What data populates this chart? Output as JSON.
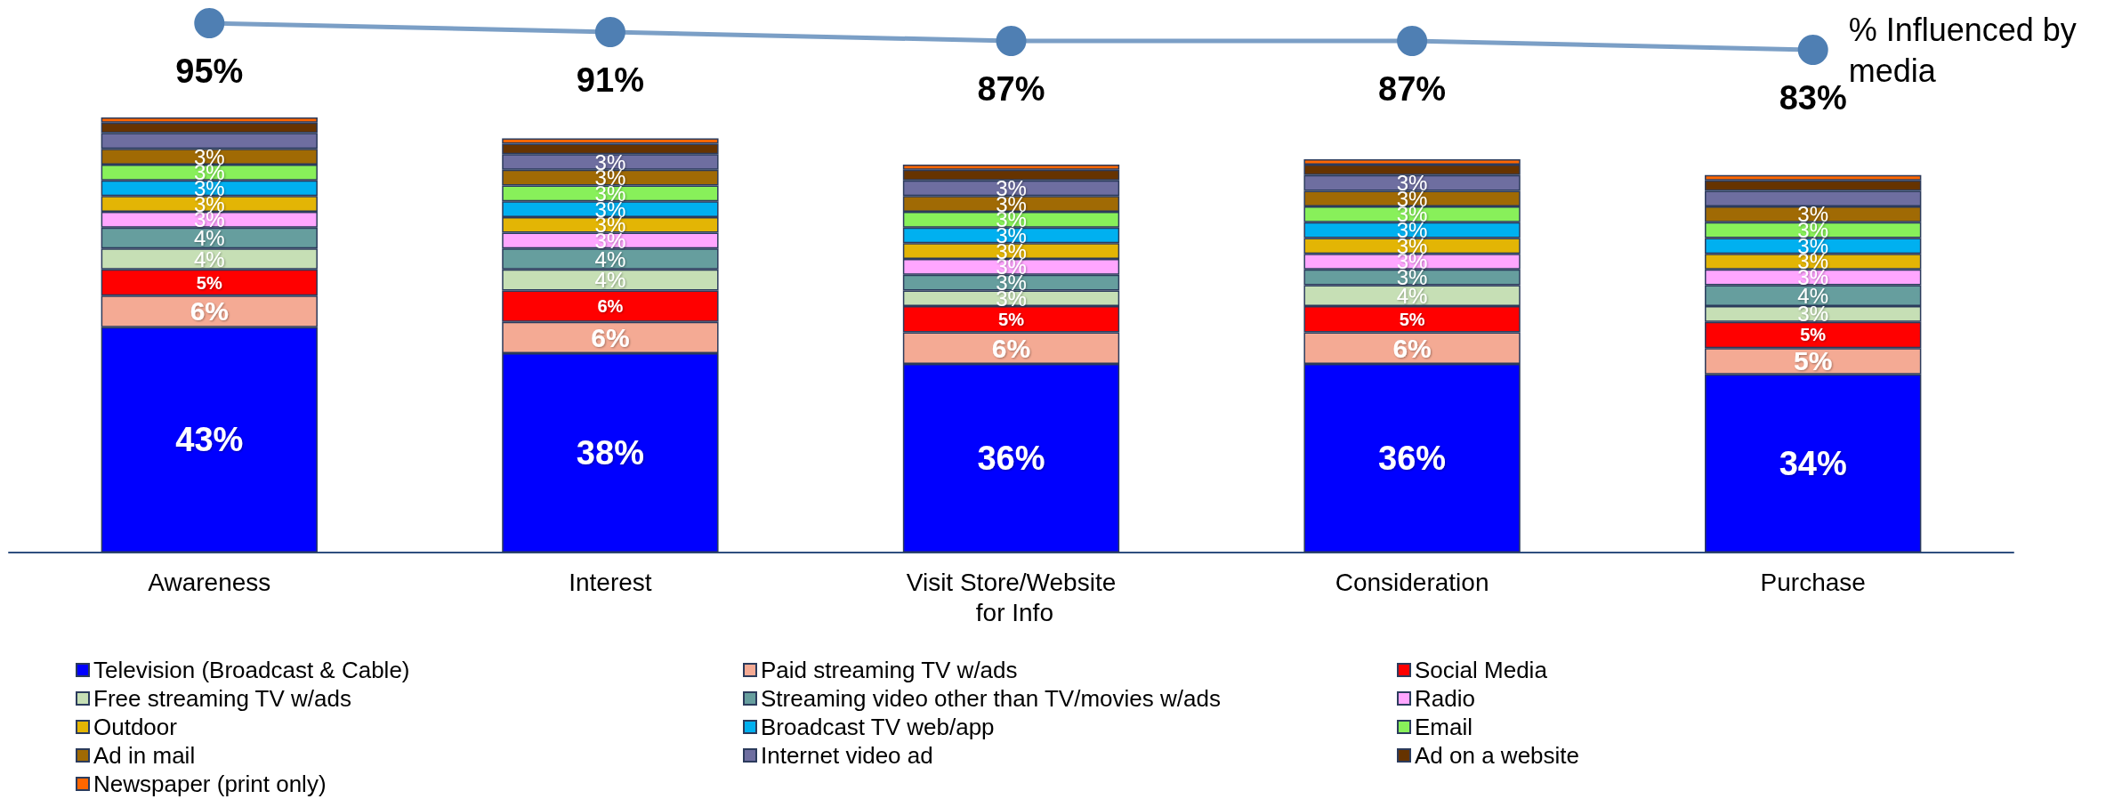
{
  "chart_data": [
    {
      "type": "line",
      "tick_labels": false,
      "grid": false,
      "marker": "circle",
      "categories": [
        "Awareness",
        "Interest",
        "Visit Store/Website for Info",
        "Consideration",
        "Purchase"
      ],
      "series": [
        {
          "name": "% Influenced by media",
          "color": "#4f7fb3",
          "values": [
            95,
            91,
            87,
            87,
            83
          ],
          "value_labels": [
            "95%",
            "91%",
            "87%",
            "87%",
            "83%"
          ]
        }
      ]
    },
    {
      "type": "bar",
      "stacked": true,
      "legend": "bottom",
      "grid": false,
      "categories": [
        "Awareness",
        "Interest",
        "Visit Store/Website for Info",
        "Consideration",
        "Purchase"
      ],
      "series": [
        {
          "name": "Television (Broadcast & Cable)",
          "color": "#0000ff",
          "values": [
            43,
            38,
            36,
            36,
            34
          ],
          "value_labels": [
            "43%",
            "38%",
            "36%",
            "36%",
            "34%"
          ]
        },
        {
          "name": "Paid streaming TV w/ads",
          "color": "#f4aa94",
          "values": [
            6,
            6,
            6,
            6,
            5
          ],
          "value_labels": [
            "6%",
            "6%",
            "6%",
            "6%",
            "5%"
          ]
        },
        {
          "name": "Social Media",
          "color": "#ff0000",
          "values": [
            5,
            6,
            5,
            5,
            5
          ],
          "value_labels": [
            "5%",
            "6%",
            "5%",
            "5%",
            "5%"
          ]
        },
        {
          "name": "Free streaming TV w/ads",
          "color": "#c6dfb5",
          "values": [
            4,
            4,
            3,
            4,
            3
          ],
          "value_labels": [
            "4%",
            "4%",
            "3%",
            "4%",
            "3%"
          ]
        },
        {
          "name": "Streaming video other than TV/movies w/ads",
          "color": "#669e9e",
          "values": [
            4,
            4,
            3,
            3,
            4
          ],
          "value_labels": [
            "4%",
            "4%",
            "3%",
            "3%",
            "4%"
          ]
        },
        {
          "name": "Radio",
          "color": "#ffa6ff",
          "values": [
            3,
            3,
            3,
            3,
            3
          ],
          "value_labels": [
            "3%",
            "3%",
            "3%",
            "3%",
            "3%"
          ]
        },
        {
          "name": "Outdoor",
          "color": "#e3b505",
          "values": [
            3,
            3,
            3,
            3,
            3
          ],
          "value_labels": [
            "3%",
            "3%",
            "3%",
            "3%",
            "3%"
          ]
        },
        {
          "name": "Broadcast TV web/app",
          "color": "#00b0f0",
          "values": [
            3,
            3,
            3,
            3,
            3
          ],
          "value_labels": [
            "3%",
            "3%",
            "3%",
            "3%",
            "3%"
          ]
        },
        {
          "name": "Email",
          "color": "#88f05a",
          "values": [
            3,
            3,
            3,
            3,
            3
          ],
          "value_labels": [
            "3%",
            "3%",
            "3%",
            "3%",
            "3%"
          ]
        },
        {
          "name": "Ad in mail",
          "color": "#a06a04",
          "values": [
            3,
            3,
            3,
            3,
            3
          ],
          "value_labels": [
            "3%",
            "3%",
            "3%",
            "3%",
            "3%"
          ]
        },
        {
          "name": "Internet video ad",
          "color": "#6e6ea0",
          "values": [
            3,
            3,
            3,
            3,
            3
          ],
          "value_labels": [
            null,
            "3%",
            "3%",
            "3%",
            null
          ]
        },
        {
          "name": "Ad on a website",
          "color": "#663300",
          "values": [
            2,
            2,
            2,
            2,
            2
          ],
          "value_labels": [
            null,
            null,
            null,
            null,
            null
          ]
        },
        {
          "name": "Newspaper (print only)",
          "color": "#ff6600",
          "values": [
            1,
            1,
            1,
            1,
            1
          ],
          "value_labels": [
            null,
            null,
            null,
            null,
            null
          ]
        }
      ]
    }
  ]
}
